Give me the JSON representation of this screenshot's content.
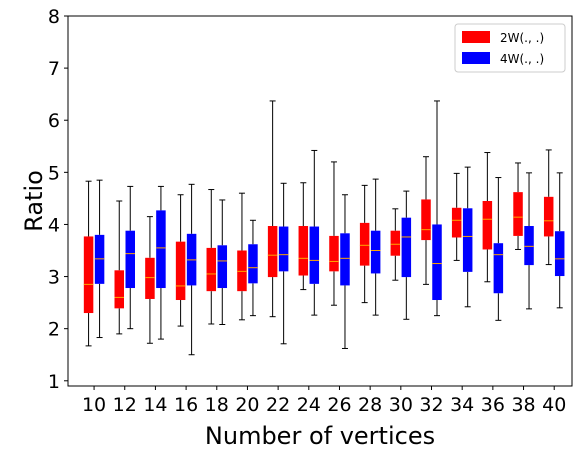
{
  "chart_data": {
    "type": "boxplot",
    "xlabel": "Number of vertices",
    "ylabel": "Ratio",
    "ylim": [
      0.9,
      8.0
    ],
    "yticks": [
      1,
      2,
      3,
      4,
      5,
      6,
      7,
      8
    ],
    "categories": [
      "10",
      "12",
      "14",
      "16",
      "18",
      "20",
      "22",
      "24",
      "26",
      "28",
      "30",
      "32",
      "34",
      "36",
      "38",
      "40"
    ],
    "grid": false,
    "legend": {
      "placement": "top-right"
    },
    "series": [
      {
        "name": "2W(., .)",
        "color": "#ff0000",
        "median_color": "#ffa500",
        "boxes": [
          {
            "min": 1.67,
            "q1": 2.3,
            "median": 2.85,
            "q3": 3.77,
            "max": 4.83
          },
          {
            "min": 1.9,
            "q1": 2.39,
            "median": 2.6,
            "q3": 3.12,
            "max": 4.45
          },
          {
            "min": 1.72,
            "q1": 2.57,
            "median": 2.98,
            "q3": 3.36,
            "max": 4.15
          },
          {
            "min": 2.05,
            "q1": 2.55,
            "median": 2.82,
            "q3": 3.67,
            "max": 4.57
          },
          {
            "min": 2.09,
            "q1": 2.72,
            "median": 3.05,
            "q3": 3.55,
            "max": 4.67
          },
          {
            "min": 2.17,
            "q1": 2.72,
            "median": 3.1,
            "q3": 3.5,
            "max": 4.6
          },
          {
            "min": 2.23,
            "q1": 2.99,
            "median": 3.41,
            "q3": 3.97,
            "max": 6.37
          },
          {
            "min": 2.75,
            "q1": 3.02,
            "median": 3.35,
            "q3": 3.97,
            "max": 4.8
          },
          {
            "min": 2.45,
            "q1": 3.1,
            "median": 3.29,
            "q3": 3.78,
            "max": 5.2
          },
          {
            "min": 2.5,
            "q1": 3.21,
            "median": 3.6,
            "q3": 4.03,
            "max": 4.75
          },
          {
            "min": 2.93,
            "q1": 3.4,
            "median": 3.62,
            "q3": 3.88,
            "max": 4.3
          },
          {
            "min": 2.85,
            "q1": 3.7,
            "median": 3.9,
            "q3": 4.48,
            "max": 5.3
          },
          {
            "min": 3.31,
            "q1": 3.75,
            "median": 4.08,
            "q3": 4.32,
            "max": 4.98
          },
          {
            "min": 2.9,
            "q1": 3.52,
            "median": 4.1,
            "q3": 4.45,
            "max": 5.38
          },
          {
            "min": 3.52,
            "q1": 3.78,
            "median": 4.14,
            "q3": 4.62,
            "max": 5.18
          },
          {
            "min": 3.23,
            "q1": 3.77,
            "median": 4.07,
            "q3": 4.53,
            "max": 5.43
          }
        ]
      },
      {
        "name": "4W(., .)",
        "color": "#0000ff",
        "median_color": "#ffa500",
        "boxes": [
          {
            "min": 1.83,
            "q1": 2.86,
            "median": 3.34,
            "q3": 3.8,
            "max": 4.85
          },
          {
            "min": 2.0,
            "q1": 2.78,
            "median": 3.44,
            "q3": 3.88,
            "max": 4.73
          },
          {
            "min": 1.8,
            "q1": 2.78,
            "median": 3.55,
            "q3": 4.27,
            "max": 4.73
          },
          {
            "min": 1.5,
            "q1": 2.83,
            "median": 3.32,
            "q3": 3.82,
            "max": 4.77
          },
          {
            "min": 2.08,
            "q1": 2.78,
            "median": 3.3,
            "q3": 3.6,
            "max": 4.47
          },
          {
            "min": 2.25,
            "q1": 2.87,
            "median": 3.17,
            "q3": 3.62,
            "max": 4.08
          },
          {
            "min": 1.71,
            "q1": 3.1,
            "median": 3.42,
            "q3": 3.96,
            "max": 4.79
          },
          {
            "min": 2.26,
            "q1": 2.86,
            "median": 3.31,
            "q3": 3.96,
            "max": 5.42
          },
          {
            "min": 1.62,
            "q1": 2.83,
            "median": 3.35,
            "q3": 3.83,
            "max": 4.57
          },
          {
            "min": 2.26,
            "q1": 3.06,
            "median": 3.5,
            "q3": 3.88,
            "max": 4.87
          },
          {
            "min": 2.18,
            "q1": 2.99,
            "median": 3.76,
            "q3": 4.13,
            "max": 4.64
          },
          {
            "min": 2.25,
            "q1": 2.55,
            "median": 3.25,
            "q3": 4.0,
            "max": 6.37
          },
          {
            "min": 2.42,
            "q1": 3.09,
            "median": 3.77,
            "q3": 4.31,
            "max": 5.1
          },
          {
            "min": 2.16,
            "q1": 2.68,
            "median": 3.42,
            "q3": 3.64,
            "max": 4.9
          },
          {
            "min": 2.38,
            "q1": 3.22,
            "median": 3.58,
            "q3": 3.97,
            "max": 4.99
          },
          {
            "min": 2.4,
            "q1": 3.01,
            "median": 3.34,
            "q3": 3.87,
            "max": 4.99
          }
        ]
      }
    ]
  }
}
